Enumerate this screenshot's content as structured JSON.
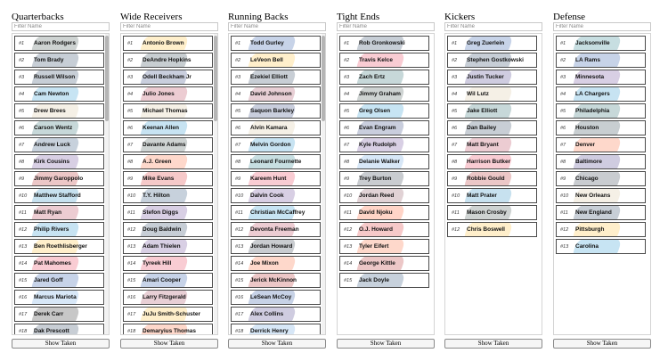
{
  "filter_placeholder": "Filter Name",
  "show_taken_label": "Show Taken",
  "columns": [
    {
      "title": "Quarterbacks",
      "scrollbar": true,
      "items": [
        {
          "rank": "#1",
          "name": "Aaron Rodgers",
          "logo_color": "#203731"
        },
        {
          "rank": "#2",
          "name": "Tom Brady",
          "logo_color": "#002244"
        },
        {
          "rank": "#3",
          "name": "Russell Wilson",
          "logo_color": "#002244"
        },
        {
          "rank": "#4",
          "name": "Cam Newton",
          "logo_color": "#0085ca"
        },
        {
          "rank": "#5",
          "name": "Drew Brees",
          "logo_color": "#d3bc8d"
        },
        {
          "rank": "#6",
          "name": "Carson Wentz",
          "logo_color": "#004c54"
        },
        {
          "rank": "#7",
          "name": "Andrew Luck",
          "logo_color": "#002c5f"
        },
        {
          "rank": "#8",
          "name": "Kirk Cousins",
          "logo_color": "#4f2683"
        },
        {
          "rank": "#9",
          "name": "Jimmy Garoppolo",
          "logo_color": "#aa0000"
        },
        {
          "rank": "#10",
          "name": "Matthew Stafford",
          "logo_color": "#0076b6"
        },
        {
          "rank": "#11",
          "name": "Matt Ryan",
          "logo_color": "#a71930"
        },
        {
          "rank": "#12",
          "name": "Philip Rivers",
          "logo_color": "#0080c6"
        },
        {
          "rank": "#13",
          "name": "Ben Roethlisberger",
          "logo_color": "#ffb612"
        },
        {
          "rank": "#14",
          "name": "Pat Mahomes",
          "logo_color": "#e31837"
        },
        {
          "rank": "#15",
          "name": "Jared Goff",
          "logo_color": "#003594"
        },
        {
          "rank": "#16",
          "name": "Marcus Mariota",
          "logo_color": "#4b92db"
        },
        {
          "rank": "#17",
          "name": "Derek Carr",
          "logo_color": "#000000"
        },
        {
          "rank": "#18",
          "name": "Dak Prescott",
          "logo_color": "#041e42"
        }
      ]
    },
    {
      "title": "Wide Receivers",
      "scrollbar": true,
      "items": [
        {
          "rank": "#1",
          "name": "Antonio Brown",
          "logo_color": "#ffb612"
        },
        {
          "rank": "#2",
          "name": "DeAndre Hopkins",
          "logo_color": "#03202f"
        },
        {
          "rank": "#3",
          "name": "Odell Beckham Jr",
          "logo_color": "#0b2265"
        },
        {
          "rank": "#4",
          "name": "Julio Jones",
          "logo_color": "#a71930"
        },
        {
          "rank": "#5",
          "name": "Michael Thomas",
          "logo_color": "#d3bc8d"
        },
        {
          "rank": "#6",
          "name": "Keenan Allen",
          "logo_color": "#0080c6"
        },
        {
          "rank": "#7",
          "name": "Davante Adams",
          "logo_color": "#203731"
        },
        {
          "rank": "#8",
          "name": "A.J. Green",
          "logo_color": "#fb4f14"
        },
        {
          "rank": "#9",
          "name": "Mike Evans",
          "logo_color": "#d50a0a"
        },
        {
          "rank": "#10",
          "name": "T.Y. Hilton",
          "logo_color": "#002c5f"
        },
        {
          "rank": "#11",
          "name": "Stefon Diggs",
          "logo_color": "#4f2683"
        },
        {
          "rank": "#12",
          "name": "Doug Baldwin",
          "logo_color": "#002244"
        },
        {
          "rank": "#13",
          "name": "Adam Thielen",
          "logo_color": "#4f2683"
        },
        {
          "rank": "#14",
          "name": "Tyreek Hill",
          "logo_color": "#e31837"
        },
        {
          "rank": "#15",
          "name": "Amari Cooper",
          "logo_color": "#003594"
        },
        {
          "rank": "#16",
          "name": "Larry Fitzgerald",
          "logo_color": "#97233f"
        },
        {
          "rank": "#17",
          "name": "JuJu Smith-Schuster",
          "logo_color": "#ffb612"
        },
        {
          "rank": "#18",
          "name": "Demaryius Thomas",
          "logo_color": "#fb4f14"
        }
      ]
    },
    {
      "title": "Running Backs",
      "scrollbar": true,
      "items": [
        {
          "rank": "#1",
          "name": "Todd Gurley",
          "logo_color": "#003594"
        },
        {
          "rank": "#2",
          "name": "LeVeon Bell",
          "logo_color": "#ffb612"
        },
        {
          "rank": "#3",
          "name": "Ezekiel Elliott",
          "logo_color": "#041e42"
        },
        {
          "rank": "#4",
          "name": "David Johnson",
          "logo_color": "#97233f"
        },
        {
          "rank": "#5",
          "name": "Saquon Barkley",
          "logo_color": "#0b2265"
        },
        {
          "rank": "#6",
          "name": "Alvin Kamara",
          "logo_color": "#d3bc8d"
        },
        {
          "rank": "#7",
          "name": "Melvin Gordon",
          "logo_color": "#0080c6"
        },
        {
          "rank": "#8",
          "name": "Leonard Fournette",
          "logo_color": "#006778"
        },
        {
          "rank": "#9",
          "name": "Kareem Hunt",
          "logo_color": "#e31837"
        },
        {
          "rank": "#10",
          "name": "Dalvin Cook",
          "logo_color": "#4f2683"
        },
        {
          "rank": "#11",
          "name": "Christian McCaffrey",
          "logo_color": "#0085ca"
        },
        {
          "rank": "#12",
          "name": "Devonta Freeman",
          "logo_color": "#a71930"
        },
        {
          "rank": "#13",
          "name": "Jordan Howard",
          "logo_color": "#0b162a"
        },
        {
          "rank": "#14",
          "name": "Joe Mixon",
          "logo_color": "#fb4f14"
        },
        {
          "rank": "#15",
          "name": "Jerick McKinnon",
          "logo_color": "#aa0000"
        },
        {
          "rank": "#16",
          "name": "LeSean McCoy",
          "logo_color": "#00338d"
        },
        {
          "rank": "#17",
          "name": "Alex Collins",
          "logo_color": "#241773"
        },
        {
          "rank": "#18",
          "name": "Derrick Henry",
          "logo_color": "#4b92db"
        }
      ]
    },
    {
      "title": "Tight Ends",
      "scrollbar": false,
      "items": [
        {
          "rank": "#1",
          "name": "Rob Gronkowski",
          "logo_color": "#002244"
        },
        {
          "rank": "#2",
          "name": "Travis Kelce",
          "logo_color": "#e31837"
        },
        {
          "rank": "#3",
          "name": "Zach Ertz",
          "logo_color": "#004c54"
        },
        {
          "rank": "#4",
          "name": "Jimmy Graham",
          "logo_color": "#203731"
        },
        {
          "rank": "#5",
          "name": "Greg Olsen",
          "logo_color": "#0085ca"
        },
        {
          "rank": "#6",
          "name": "Evan Engram",
          "logo_color": "#0b2265"
        },
        {
          "rank": "#7",
          "name": "Kyle Rudolph",
          "logo_color": "#4f2683"
        },
        {
          "rank": "#8",
          "name": "Delanie Walker",
          "logo_color": "#4b92db"
        },
        {
          "rank": "#9",
          "name": "Trey Burton",
          "logo_color": "#0b162a"
        },
        {
          "rank": "#10",
          "name": "Jordan Reed",
          "logo_color": "#773141"
        },
        {
          "rank": "#11",
          "name": "David Njoku",
          "logo_color": "#ff3c00"
        },
        {
          "rank": "#12",
          "name": "O.J. Howard",
          "logo_color": "#d50a0a"
        },
        {
          "rank": "#13",
          "name": "Tyler Eifert",
          "logo_color": "#fb4f14"
        },
        {
          "rank": "#14",
          "name": "George Kittle",
          "logo_color": "#aa0000"
        },
        {
          "rank": "#15",
          "name": "Jack Doyle",
          "logo_color": "#002c5f"
        }
      ]
    },
    {
      "title": "Kickers",
      "scrollbar": false,
      "items": [
        {
          "rank": "#1",
          "name": "Greg Zuerlein",
          "logo_color": "#003594"
        },
        {
          "rank": "#2",
          "name": "Stephen Gostkowski",
          "logo_color": "#002244"
        },
        {
          "rank": "#3",
          "name": "Justin Tucker",
          "logo_color": "#241773"
        },
        {
          "rank": "#4",
          "name": "Wil Lutz",
          "logo_color": "#d3bc8d"
        },
        {
          "rank": "#5",
          "name": "Jake Elliott",
          "logo_color": "#004c54"
        },
        {
          "rank": "#6",
          "name": "Dan Bailey",
          "logo_color": "#041e42"
        },
        {
          "rank": "#7",
          "name": "Matt Bryant",
          "logo_color": "#a71930"
        },
        {
          "rank": "#8",
          "name": "Harrison Butker",
          "logo_color": "#e31837"
        },
        {
          "rank": "#9",
          "name": "Robbie Gould",
          "logo_color": "#aa0000"
        },
        {
          "rank": "#10",
          "name": "Matt Prater",
          "logo_color": "#0076b6"
        },
        {
          "rank": "#11",
          "name": "Mason Crosby",
          "logo_color": "#203731"
        },
        {
          "rank": "#12",
          "name": "Chris Boswell",
          "logo_color": "#ffb612"
        }
      ]
    },
    {
      "title": "Defense",
      "scrollbar": false,
      "items": [
        {
          "rank": "#1",
          "name": "Jacksonville",
          "logo_color": "#006778"
        },
        {
          "rank": "#2",
          "name": "LA Rams",
          "logo_color": "#003594"
        },
        {
          "rank": "#3",
          "name": "Minnesota",
          "logo_color": "#4f2683"
        },
        {
          "rank": "#4",
          "name": "LA Chargers",
          "logo_color": "#0080c6"
        },
        {
          "rank": "#5",
          "name": "Philadelphia",
          "logo_color": "#004c54"
        },
        {
          "rank": "#6",
          "name": "Houston",
          "logo_color": "#03202f"
        },
        {
          "rank": "#7",
          "name": "Denver",
          "logo_color": "#fb4f14"
        },
        {
          "rank": "#8",
          "name": "Baltimore",
          "logo_color": "#241773"
        },
        {
          "rank": "#9",
          "name": "Chicago",
          "logo_color": "#0b162a"
        },
        {
          "rank": "#10",
          "name": "New Orleans",
          "logo_color": "#d3bc8d"
        },
        {
          "rank": "#11",
          "name": "New England",
          "logo_color": "#002244"
        },
        {
          "rank": "#12",
          "name": "Pittsburgh",
          "logo_color": "#ffb612"
        },
        {
          "rank": "#13",
          "name": "Carolina",
          "logo_color": "#0085ca"
        }
      ]
    }
  ]
}
